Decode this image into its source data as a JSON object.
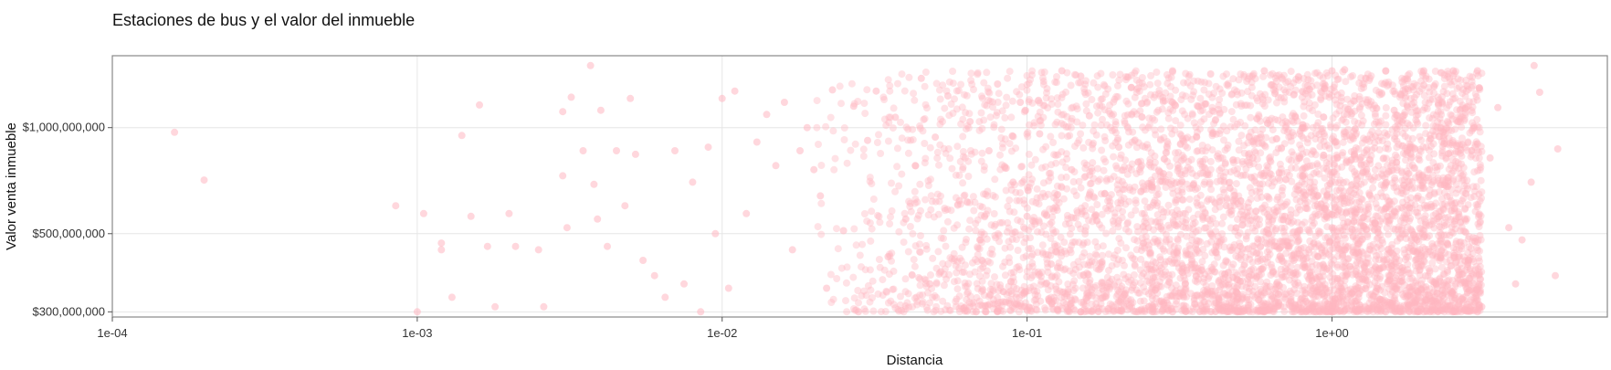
{
  "chart_data": {
    "type": "scatter",
    "title": "Estaciones de bus y el valor del inmueble",
    "xlabel": "Distancia",
    "ylabel": "Valor venta inmueble",
    "x_scale": "log",
    "y_scale": "log",
    "xlim": [
      0.0001,
      8
    ],
    "ylim": [
      290000000,
      1600000000
    ],
    "x_ticks": [
      {
        "value": 0.0001,
        "label": "1e-04"
      },
      {
        "value": 0.001,
        "label": "1e-03"
      },
      {
        "value": 0.01,
        "label": "1e-02"
      },
      {
        "value": 0.1,
        "label": "1e-01"
      },
      {
        "value": 1,
        "label": "1e+00"
      }
    ],
    "y_ticks": [
      {
        "value": 300000000,
        "label": "$300,000,000"
      },
      {
        "value": 500000000,
        "label": "$500,000,000"
      },
      {
        "value": 1000000000,
        "label": "$1,000,000,000"
      }
    ],
    "grid": true,
    "point_color": "#ffb6c1",
    "point_opacity": 0.55,
    "points": [
      [
        0.00016,
        970000000
      ],
      [
        0.0002,
        710000000
      ],
      [
        0.00085,
        600000000
      ],
      [
        0.001,
        300000000
      ],
      [
        0.00105,
        570000000
      ],
      [
        0.0012,
        470000000
      ],
      [
        0.0012,
        450000000
      ],
      [
        0.0013,
        330000000
      ],
      [
        0.0014,
        950000000
      ],
      [
        0.0015,
        560000000
      ],
      [
        0.0016,
        1160000000
      ],
      [
        0.0017,
        460000000
      ],
      [
        0.0018,
        310000000
      ],
      [
        0.002,
        570000000
      ],
      [
        0.0021,
        460000000
      ],
      [
        0.0025,
        450000000
      ],
      [
        0.0026,
        310000000
      ],
      [
        0.003,
        1110000000
      ],
      [
        0.003,
        730000000
      ],
      [
        0.0031,
        520000000
      ],
      [
        0.0032,
        1220000000
      ],
      [
        0.0035,
        860000000
      ],
      [
        0.0037,
        1500000000
      ],
      [
        0.0038,
        690000000
      ],
      [
        0.0039,
        550000000
      ],
      [
        0.004,
        1120000000
      ],
      [
        0.0042,
        460000000
      ],
      [
        0.0045,
        860000000
      ],
      [
        0.0048,
        600000000
      ],
      [
        0.005,
        1210000000
      ],
      [
        0.0052,
        840000000
      ],
      [
        0.0055,
        420000000
      ],
      [
        0.006,
        380000000
      ],
      [
        0.0065,
        330000000
      ],
      [
        0.007,
        860000000
      ],
      [
        0.0075,
        360000000
      ],
      [
        0.008,
        700000000
      ],
      [
        0.0085,
        300000000
      ],
      [
        0.009,
        880000000
      ],
      [
        0.0095,
        500000000
      ],
      [
        0.01,
        1210000000
      ],
      [
        0.0105,
        350000000
      ],
      [
        0.011,
        1270000000
      ],
      [
        0.012,
        570000000
      ],
      [
        0.013,
        910000000
      ],
      [
        0.014,
        1090000000
      ],
      [
        0.015,
        780000000
      ],
      [
        0.016,
        1180000000
      ],
      [
        0.017,
        450000000
      ],
      [
        0.018,
        860000000
      ],
      [
        0.019,
        1000000000
      ],
      [
        0.02,
        760000000
      ],
      [
        0.021,
        640000000
      ],
      [
        0.022,
        350000000
      ],
      [
        0.023,
        1280000000
      ],
      [
        0.025,
        510000000
      ],
      [
        0.027,
        1150000000
      ],
      [
        0.028,
        300000000
      ],
      [
        0.03,
        920000000
      ],
      [
        0.032,
        1270000000
      ],
      [
        0.035,
        430000000
      ],
      [
        0.037,
        1070000000
      ],
      [
        0.04,
        550000000
      ],
      [
        0.043,
        780000000
      ],
      [
        0.045,
        1380000000
      ],
      [
        0.048,
        360000000
      ],
      [
        0.05,
        940000000
      ],
      [
        0.055,
        1230000000
      ],
      [
        0.06,
        620000000
      ],
      [
        0.065,
        1040000000
      ],
      [
        0.07,
        480000000
      ],
      [
        0.075,
        860000000
      ],
      [
        0.08,
        1330000000
      ],
      [
        0.085,
        320000000
      ],
      [
        0.09,
        700000000
      ],
      [
        0.095,
        1180000000
      ],
      [
        0.1,
        560000000
      ],
      [
        0.11,
        960000000
      ],
      [
        0.12,
        410000000
      ],
      [
        0.13,
        1450000000
      ],
      [
        0.14,
        760000000
      ],
      [
        0.15,
        300000000
      ],
      [
        0.16,
        1080000000
      ],
      [
        0.18,
        650000000
      ],
      [
        0.2,
        880000000
      ],
      [
        0.22,
        1300000000
      ],
      [
        0.25,
        520000000
      ],
      [
        0.28,
        740000000
      ],
      [
        0.3,
        1180000000
      ],
      [
        0.33,
        360000000
      ],
      [
        0.36,
        940000000
      ],
      [
        0.4,
        1420000000
      ],
      [
        0.45,
        600000000
      ],
      [
        0.5,
        460000000
      ],
      [
        0.55,
        820000000
      ],
      [
        0.6,
        340000000
      ],
      [
        0.65,
        1250000000
      ],
      [
        0.7,
        560000000
      ],
      [
        0.75,
        420000000
      ],
      [
        0.8,
        1000000000
      ],
      [
        0.85,
        380000000
      ],
      [
        0.9,
        640000000
      ],
      [
        0.95,
        320000000
      ],
      [
        1.0,
        520000000
      ],
      [
        1.1,
        1460000000
      ],
      [
        1.2,
        440000000
      ],
      [
        1.3,
        760000000
      ],
      [
        1.4,
        350000000
      ],
      [
        1.5,
        590000000
      ],
      [
        1.6,
        1120000000
      ],
      [
        1.7,
        400000000
      ],
      [
        1.8,
        880000000
      ],
      [
        1.9,
        480000000
      ],
      [
        2.0,
        1320000000
      ],
      [
        2.2,
        360000000
      ],
      [
        2.4,
        680000000
      ],
      [
        2.6,
        1040000000
      ],
      [
        2.8,
        420000000
      ],
      [
        3.0,
        900000000
      ],
      [
        3.1,
        310000000
      ],
      [
        3.3,
        820000000
      ],
      [
        3.5,
        1140000000
      ],
      [
        3.8,
        520000000
      ],
      [
        4.0,
        360000000
      ],
      [
        4.2,
        480000000
      ],
      [
        4.5,
        700000000
      ],
      [
        4.6,
        1500000000
      ],
      [
        4.8,
        1260000000
      ],
      [
        5.4,
        380000000
      ],
      [
        5.5,
        870000000
      ]
    ],
    "density_points": [
      [
        0.3,
        300000000
      ],
      [
        0.3,
        1450000000
      ],
      [
        0.6,
        300000000
      ],
      [
        0.6,
        1450000000
      ],
      [
        1.0,
        300000000
      ],
      [
        1.0,
        1450000000
      ],
      [
        1.5,
        300000000
      ],
      [
        1.5,
        1450000000
      ],
      [
        2.0,
        300000000
      ],
      [
        2.0,
        1450000000
      ],
      [
        2.5,
        300000000
      ],
      [
        2.5,
        1450000000
      ],
      [
        3.0,
        300000000
      ],
      [
        3.0,
        1450000000
      ],
      [
        0.15,
        300000000
      ],
      [
        0.15,
        1400000000
      ]
    ]
  }
}
